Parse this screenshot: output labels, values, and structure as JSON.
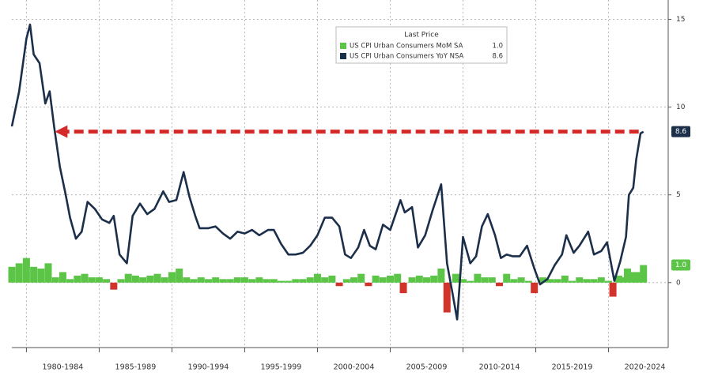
{
  "chart_data": {
    "type": "bar_line",
    "legend_title": "Last Price",
    "xlim": [
      1979.0,
      2024.1
    ],
    "ylim": [
      -3.7,
      16.1
    ],
    "yticks": [
      0,
      5,
      10,
      15
    ],
    "xticks": [
      {
        "value": 1980,
        "label": "1980-1984"
      },
      {
        "value": 1985,
        "label": "1985-1989"
      },
      {
        "value": 1990,
        "label": "1990-1994"
      },
      {
        "value": 1995,
        "label": "1995-1999"
      },
      {
        "value": 2000,
        "label": "2000-2004"
      },
      {
        "value": 2005,
        "label": "2005-2009"
      },
      {
        "value": 2010,
        "label": "2010-2014"
      },
      {
        "value": 2015,
        "label": "2015-2019"
      },
      {
        "value": 2020,
        "label": "2020-2024"
      }
    ],
    "grid": true,
    "legend_position": "top",
    "series": [
      {
        "name": "US CPI Urban Consumers MoM SA",
        "type": "bar",
        "color": "#5cc548",
        "negative_color": "#d2332b",
        "last_label": "1.0",
        "x": [
          1979.0,
          1979.5,
          1980.0,
          1980.5,
          1981.0,
          1981.5,
          1982.0,
          1982.5,
          1983.0,
          1983.5,
          1984.0,
          1984.5,
          1985.0,
          1985.5,
          1986.0,
          1986.5,
          1987.0,
          1987.5,
          1988.0,
          1988.5,
          1989.0,
          1989.5,
          1990.0,
          1990.5,
          1991.0,
          1991.5,
          1992.0,
          1992.5,
          1993.0,
          1993.5,
          1994.0,
          1994.5,
          1995.0,
          1995.5,
          1996.0,
          1996.5,
          1997.0,
          1997.5,
          1998.0,
          1998.5,
          1999.0,
          1999.5,
          2000.0,
          2000.5,
          2001.0,
          2001.5,
          2002.0,
          2002.5,
          2003.0,
          2003.5,
          2004.0,
          2004.5,
          2005.0,
          2005.5,
          2005.9,
          2006.5,
          2007.0,
          2007.5,
          2008.0,
          2008.5,
          2008.9,
          2009.5,
          2010.0,
          2010.5,
          2011.0,
          2011.5,
          2012.0,
          2012.5,
          2013.0,
          2013.5,
          2014.0,
          2014.5,
          2014.9,
          2015.5,
          2016.0,
          2016.5,
          2017.0,
          2017.5,
          2018.0,
          2018.5,
          2019.0,
          2019.5,
          2020.0,
          2020.3,
          2020.7,
          2021.0,
          2021.3,
          2021.7,
          2022.0,
          2022.4
        ],
        "values": [
          0.9,
          1.1,
          1.4,
          0.9,
          0.8,
          1.1,
          0.3,
          0.6,
          0.2,
          0.4,
          0.5,
          0.3,
          0.3,
          0.2,
          -0.4,
          0.2,
          0.5,
          0.4,
          0.3,
          0.4,
          0.5,
          0.3,
          0.6,
          0.8,
          0.3,
          0.2,
          0.3,
          0.2,
          0.3,
          0.2,
          0.2,
          0.3,
          0.3,
          0.2,
          0.3,
          0.2,
          0.2,
          0.1,
          0.1,
          0.2,
          0.2,
          0.3,
          0.5,
          0.3,
          0.4,
          -0.2,
          0.2,
          0.3,
          0.5,
          -0.2,
          0.4,
          0.3,
          0.4,
          0.5,
          -0.6,
          0.3,
          0.4,
          0.3,
          0.4,
          0.8,
          -1.7,
          0.5,
          0.2,
          0.1,
          0.5,
          0.3,
          0.3,
          -0.2,
          0.5,
          0.2,
          0.3,
          0.1,
          -0.6,
          0.3,
          0.2,
          0.2,
          0.4,
          0.1,
          0.3,
          0.2,
          0.2,
          0.3,
          0.1,
          -0.8,
          0.4,
          0.3,
          0.8,
          0.6,
          0.6,
          1.0
        ]
      },
      {
        "name": "US CPI Urban Consumers YoY NSA",
        "type": "line",
        "color": "#1c2f4a",
        "last_label": "8.6",
        "x": [
          1979.0,
          1979.5,
          1980.0,
          1980.25,
          1980.5,
          1980.9,
          1981.3,
          1981.6,
          1981.9,
          1982.3,
          1982.7,
          1983.0,
          1983.4,
          1983.8,
          1984.2,
          1984.7,
          1985.2,
          1985.7,
          1986.0,
          1986.4,
          1986.9,
          1987.3,
          1987.8,
          1988.3,
          1988.8,
          1989.4,
          1989.8,
          1990.3,
          1990.8,
          1991.2,
          1991.6,
          1991.9,
          1992.5,
          1993.0,
          1993.5,
          1994.0,
          1994.5,
          1995.0,
          1995.5,
          1996.0,
          1996.6,
          1997.0,
          1997.5,
          1998.0,
          1998.5,
          1999.0,
          1999.5,
          2000.0,
          2000.5,
          2001.0,
          2001.5,
          2001.9,
          2002.3,
          2002.8,
          2003.2,
          2003.6,
          2004.0,
          2004.5,
          2005.0,
          2005.7,
          2006.0,
          2006.5,
          2006.9,
          2007.4,
          2007.9,
          2008.5,
          2008.9,
          2009.3,
          2009.6,
          2010.0,
          2010.5,
          2010.9,
          2011.3,
          2011.7,
          2012.2,
          2012.6,
          2013.0,
          2013.4,
          2013.9,
          2014.4,
          2014.9,
          2015.3,
          2015.8,
          2016.3,
          2016.8,
          2017.1,
          2017.6,
          2018.0,
          2018.6,
          2019.0,
          2019.5,
          2019.9,
          2020.4,
          2020.8,
          2021.2,
          2021.4,
          2021.7,
          2021.9,
          2022.2,
          2022.4
        ],
        "values": [
          8.9,
          10.9,
          13.9,
          14.7,
          13.0,
          12.5,
          10.2,
          10.9,
          8.9,
          6.6,
          5.0,
          3.7,
          2.5,
          2.9,
          4.6,
          4.2,
          3.6,
          3.4,
          3.8,
          1.6,
          1.1,
          3.8,
          4.5,
          3.9,
          4.2,
          5.2,
          4.6,
          4.7,
          6.3,
          4.9,
          3.8,
          3.1,
          3.1,
          3.2,
          2.8,
          2.5,
          2.9,
          2.8,
          3.0,
          2.7,
          3.0,
          3.0,
          2.2,
          1.6,
          1.6,
          1.7,
          2.1,
          2.7,
          3.7,
          3.7,
          3.2,
          1.6,
          1.4,
          2.0,
          3.0,
          2.1,
          1.9,
          3.3,
          3.0,
          4.7,
          4.0,
          4.3,
          2.0,
          2.7,
          4.1,
          5.6,
          1.1,
          -0.7,
          -2.1,
          2.6,
          1.1,
          1.5,
          3.2,
          3.9,
          2.7,
          1.4,
          1.6,
          1.5,
          1.5,
          2.1,
          0.8,
          -0.1,
          0.2,
          1.0,
          1.6,
          2.7,
          1.7,
          2.1,
          2.9,
          1.6,
          1.8,
          2.3,
          0.1,
          1.2,
          2.6,
          5.0,
          5.4,
          7.0,
          8.5,
          8.6
        ]
      }
    ]
  }
}
